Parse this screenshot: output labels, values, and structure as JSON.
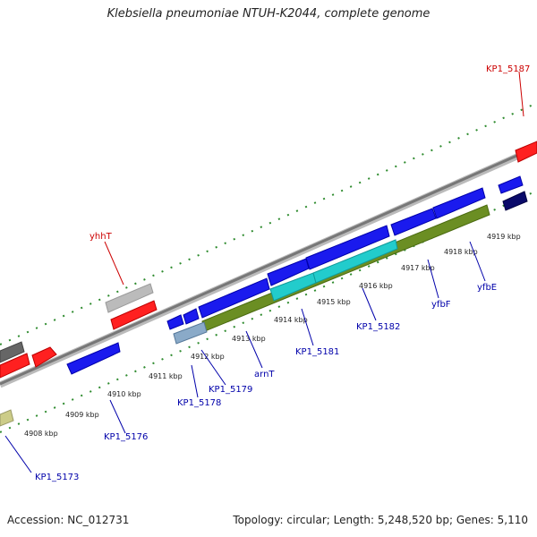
{
  "title": "Klebsiella pneumoniae NTUH-K2044, complete genome",
  "footer": {
    "accession": "Accession: NC_012731",
    "summary": "Topology: circular; Length: 5,248,520 bp; Genes: 5,110"
  },
  "colors": {
    "forward_gene": "#ff0000",
    "reverse_gene": "#0000ff",
    "backbone": "#888888",
    "tick": "#2e8b2e",
    "label_red": "#cc0000",
    "label_blue": "#0000aa",
    "olive_feature": "#6b8e23",
    "cyan_feature": "#22cccc"
  },
  "kbp_labels": [
    "4908 kbp",
    "4909 kbp",
    "4910 kbp",
    "4911 kbp",
    "4912 kbp",
    "4913 kbp",
    "4914 kbp",
    "4915 kbp",
    "4916 kbp",
    "4917 kbp",
    "4918 kbp",
    "4919 kbp"
  ],
  "gene_labels": {
    "kp1_5187": "KP1_5187",
    "yhht": "yhhT",
    "kp1_5173": "KP1_5173",
    "kp1_5176": "KP1_5176",
    "kp1_5178": "KP1_5178",
    "kp1_5179": "KP1_5179",
    "arnt": "arnT",
    "kp1_5181": "KP1_5181",
    "kp1_5182": "KP1_5182",
    "yfbf": "yfbF",
    "yfbe": "yfbE"
  }
}
